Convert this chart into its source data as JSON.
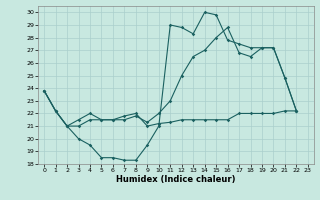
{
  "title": "",
  "xlabel": "Humidex (Indice chaleur)",
  "xlim": [
    -0.5,
    23.5
  ],
  "ylim": [
    18,
    30.5
  ],
  "yticks": [
    18,
    19,
    20,
    21,
    22,
    23,
    24,
    25,
    26,
    27,
    28,
    29,
    30
  ],
  "xticks": [
    0,
    1,
    2,
    3,
    4,
    5,
    6,
    7,
    8,
    9,
    10,
    11,
    12,
    13,
    14,
    15,
    16,
    17,
    18,
    19,
    20,
    21,
    22,
    23
  ],
  "bg_color": "#c8e8e0",
  "line_color": "#1a6060",
  "grid_color": "#aacfcc",
  "line1_x": [
    0,
    1,
    2,
    3,
    4,
    5,
    6,
    7,
    8,
    9,
    10,
    11,
    12,
    13,
    14,
    15,
    16,
    17,
    18,
    19,
    20,
    21,
    22
  ],
  "line1_y": [
    23.8,
    22.2,
    21.0,
    20.0,
    19.5,
    18.5,
    18.5,
    18.3,
    18.3,
    19.5,
    21.0,
    29.0,
    28.8,
    28.3,
    30.0,
    29.8,
    27.8,
    27.5,
    27.2,
    27.2,
    27.2,
    24.8,
    22.2
  ],
  "line2_x": [
    0,
    1,
    2,
    3,
    4,
    5,
    6,
    7,
    8,
    9,
    10,
    11,
    12,
    13,
    14,
    15,
    16,
    17,
    18,
    19,
    20,
    21,
    22
  ],
  "line2_y": [
    23.8,
    22.2,
    21.0,
    21.5,
    22.0,
    21.5,
    21.5,
    21.8,
    22.0,
    21.0,
    21.2,
    21.3,
    21.5,
    21.5,
    21.5,
    21.5,
    21.5,
    22.0,
    22.0,
    22.0,
    22.0,
    22.2,
    22.2
  ],
  "line3_x": [
    0,
    1,
    2,
    3,
    4,
    5,
    6,
    7,
    8,
    9,
    10,
    11,
    12,
    13,
    14,
    15,
    16,
    17,
    18,
    19,
    20,
    21,
    22
  ],
  "line3_y": [
    23.8,
    22.2,
    21.0,
    21.0,
    21.5,
    21.5,
    21.5,
    21.5,
    21.8,
    21.3,
    22.0,
    23.0,
    25.0,
    26.5,
    27.0,
    28.0,
    28.8,
    26.8,
    26.5,
    27.2,
    27.2,
    24.8,
    22.2
  ]
}
